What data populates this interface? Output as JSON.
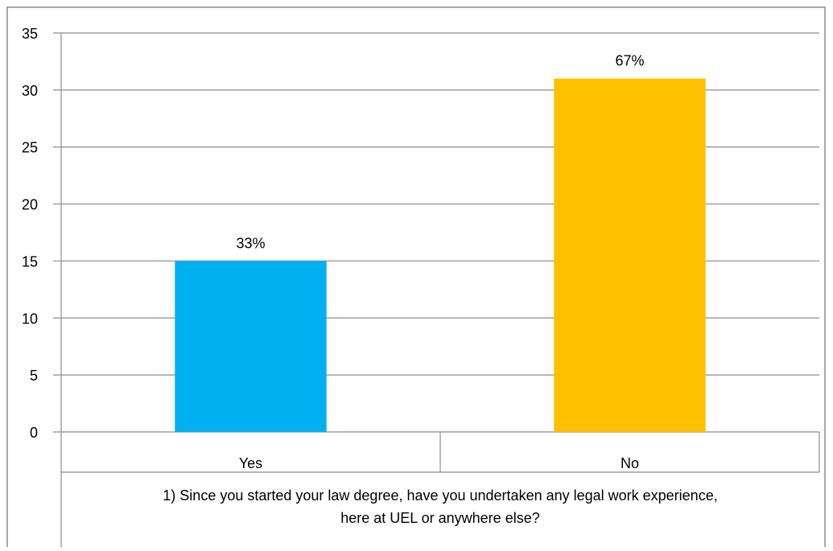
{
  "chart_data": {
    "type": "bar",
    "categories": [
      "Yes",
      "No"
    ],
    "values": [
      15,
      31
    ],
    "data_labels": [
      "33%",
      "67%"
    ],
    "colors": [
      "#00B0F0",
      "#FFC000"
    ],
    "ylim": [
      0,
      35
    ],
    "yticks": [
      "0",
      "5",
      "10",
      "15",
      "20",
      "25",
      "30",
      "35"
    ],
    "xlabel": "1) Since you started your law degree, have you undertaken any legal work experience, here at UEL or anywhere else?",
    "xlabel_lines": [
      "1) Since you started your law degree, have you undertaken any legal work experience,",
      "here at UEL or anywhere else?"
    ],
    "ylabel": "",
    "title": "",
    "grid": true,
    "legend": "none"
  }
}
